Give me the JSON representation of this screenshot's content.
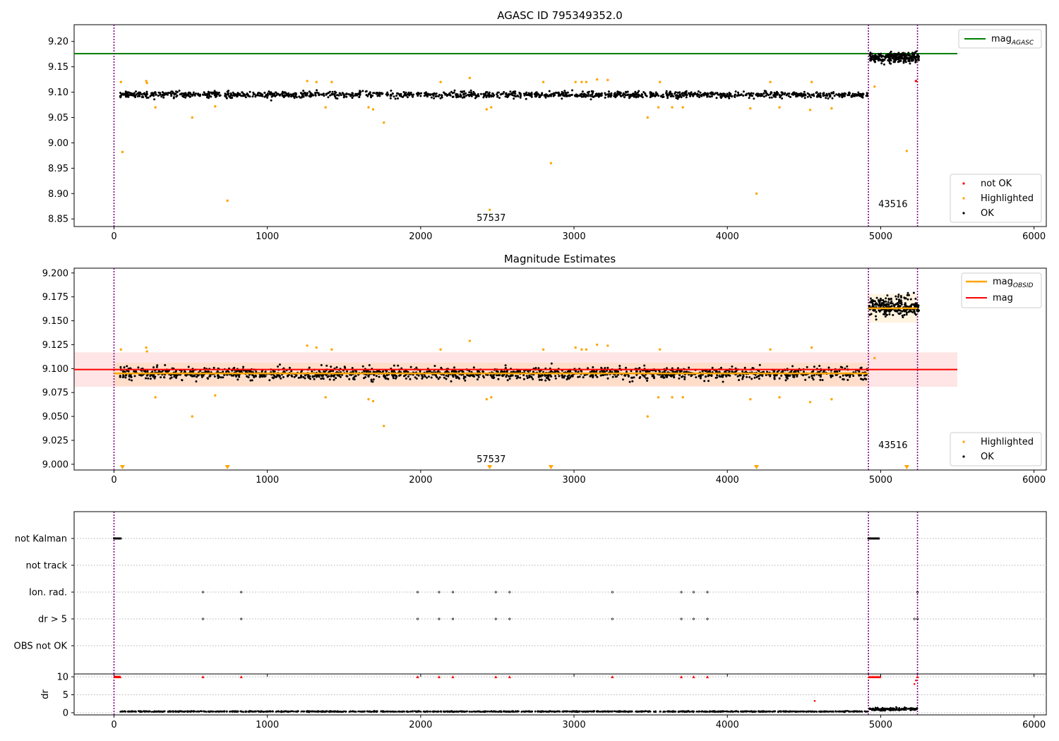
{
  "chart_data": [
    {
      "type": "scatter",
      "title": "AGASC ID 795349352.0",
      "xlabel": "",
      "ylabel": "",
      "xlim": [
        -260,
        6080
      ],
      "ylim": [
        8.835,
        9.233
      ],
      "xticks": [
        0,
        1000,
        2000,
        3000,
        4000,
        5000,
        6000
      ],
      "yticks": [
        8.85,
        8.9,
        8.95,
        9.0,
        9.05,
        9.1,
        9.15,
        9.2
      ],
      "ytick_format": 2,
      "grid": false,
      "obs_boundaries": [
        0,
        4920,
        5240
      ],
      "obs_labels": [
        {
          "text": "57537",
          "x": 2460,
          "y": 8.846
        },
        {
          "text": "43516",
          "x": 5080,
          "y": 8.873
        }
      ],
      "reference_line": {
        "name": "mag_AGASC",
        "y": 9.176,
        "x": [
          -260,
          5500
        ],
        "color": "#008000"
      },
      "legend_lines": [
        {
          "main": "mag",
          "sub": "AGASC",
          "color": "#008000"
        }
      ],
      "legend_markers": [
        {
          "label": "not OK",
          "color": "#ff0000"
        },
        {
          "label": "Highlighted",
          "color": "#ffa500"
        },
        {
          "label": "OK",
          "color": "#000000"
        }
      ],
      "legend_lines_position": "upper right",
      "legend_markers_position": "lower right",
      "series": [
        {
          "name": "OK",
          "color": "#000000",
          "segments": [
            {
              "x": [
                40,
                4920
              ],
              "y": 9.095,
              "noise": 0.008,
              "n": 1400
            },
            {
              "x": [
                4925,
                5250
              ],
              "y": 9.168,
              "noise": 0.012,
              "n": 260
            }
          ]
        },
        {
          "name": "Highlighted",
          "color": "#ffa500",
          "points": [
            [
              45,
              9.12
            ],
            [
              55,
              8.982
            ],
            [
              210,
              9.122
            ],
            [
              215,
              9.118
            ],
            [
              270,
              9.07
            ],
            [
              510,
              9.05
            ],
            [
              660,
              9.072
            ],
            [
              740,
              8.886
            ],
            [
              1260,
              9.122
            ],
            [
              1320,
              9.12
            ],
            [
              1380,
              9.07
            ],
            [
              1420,
              9.12
            ],
            [
              1660,
              9.07
            ],
            [
              1690,
              9.066
            ],
            [
              1760,
              9.04
            ],
            [
              2130,
              9.12
            ],
            [
              2320,
              9.128
            ],
            [
              2430,
              9.066
            ],
            [
              2450,
              8.868
            ],
            [
              2460,
              9.07
            ],
            [
              2800,
              9.12
            ],
            [
              2850,
              8.96
            ],
            [
              3010,
              9.12
            ],
            [
              3050,
              9.12
            ],
            [
              3080,
              9.12
            ],
            [
              3150,
              9.125
            ],
            [
              3220,
              9.124
            ],
            [
              3480,
              9.05
            ],
            [
              3550,
              9.07
            ],
            [
              3560,
              9.12
            ],
            [
              3640,
              9.07
            ],
            [
              3710,
              9.07
            ],
            [
              4150,
              9.068
            ],
            [
              4190,
              8.9
            ],
            [
              4280,
              9.12
            ],
            [
              4340,
              9.07
            ],
            [
              4540,
              9.065
            ],
            [
              4550,
              9.12
            ],
            [
              4680,
              9.068
            ],
            [
              4960,
              9.111
            ],
            [
              5170,
              8.984
            ]
          ]
        },
        {
          "name": "not OK",
          "color": "#ff0000",
          "points": [
            [
              5230,
              9.122
            ]
          ]
        }
      ]
    },
    {
      "type": "scatter",
      "title": "Magnitude Estimates",
      "xlabel": "",
      "ylabel": "",
      "xlim": [
        -260,
        6080
      ],
      "ylim": [
        8.994,
        9.205
      ],
      "xticks": [
        0,
        1000,
        2000,
        3000,
        4000,
        5000,
        6000
      ],
      "yticks": [
        9.0,
        9.025,
        9.05,
        9.075,
        9.1,
        9.125,
        9.15,
        9.175,
        9.2
      ],
      "ytick_format": 3,
      "grid": false,
      "obs_boundaries": [
        0,
        4920,
        5240
      ],
      "obs_labels": [
        {
          "text": "57537",
          "x": 2460,
          "y": 9.002
        },
        {
          "text": "43516",
          "x": 5080,
          "y": 9.017
        }
      ],
      "mag": {
        "name": "mag",
        "y": 9.099,
        "band": [
          9.081,
          9.117
        ],
        "x": [
          -260,
          5500
        ],
        "color": "#ff0000"
      },
      "mag_obsid": [
        {
          "x": [
            0,
            4920
          ],
          "y": 9.095,
          "band": [
            9.082,
            9.106
          ]
        },
        {
          "x": [
            4920,
            5240
          ],
          "y": 9.163,
          "band": [
            9.148,
            9.178
          ]
        }
      ],
      "legend_lines": [
        {
          "main": "mag",
          "sub": "OBSID",
          "color": "#ffa500"
        },
        {
          "main": "mag",
          "sub": "",
          "color": "#ff0000"
        }
      ],
      "legend_markers": [
        {
          "label": "Highlighted",
          "color": "#ffa500"
        },
        {
          "label": "OK",
          "color": "#000000"
        }
      ],
      "legend_lines_position": "upper right",
      "legend_markers_position": "lower right",
      "clipped_markers_x": [
        55,
        740,
        2450,
        2850,
        4190,
        5170
      ],
      "series": [
        {
          "name": "OK",
          "color": "#000000",
          "segments": [
            {
              "x": [
                40,
                4920
              ],
              "y": 9.095,
              "noise": 0.008,
              "n": 1600
            },
            {
              "x": [
                4925,
                5250
              ],
              "y": 9.165,
              "noise": 0.013,
              "n": 260
            }
          ]
        },
        {
          "name": "Highlighted",
          "color": "#ffa500",
          "points": [
            [
              45,
              9.12
            ],
            [
              210,
              9.122
            ],
            [
              215,
              9.118
            ],
            [
              270,
              9.07
            ],
            [
              510,
              9.05
            ],
            [
              660,
              9.072
            ],
            [
              1260,
              9.124
            ],
            [
              1320,
              9.122
            ],
            [
              1380,
              9.07
            ],
            [
              1420,
              9.12
            ],
            [
              1660,
              9.068
            ],
            [
              1690,
              9.066
            ],
            [
              1760,
              9.04
            ],
            [
              2130,
              9.12
            ],
            [
              2320,
              9.129
            ],
            [
              2430,
              9.068
            ],
            [
              2460,
              9.07
            ],
            [
              2800,
              9.12
            ],
            [
              3010,
              9.122
            ],
            [
              3050,
              9.12
            ],
            [
              3080,
              9.12
            ],
            [
              3150,
              9.125
            ],
            [
              3220,
              9.124
            ],
            [
              3480,
              9.05
            ],
            [
              3550,
              9.07
            ],
            [
              3560,
              9.12
            ],
            [
              3640,
              9.07
            ],
            [
              3710,
              9.07
            ],
            [
              4150,
              9.068
            ],
            [
              4280,
              9.12
            ],
            [
              4340,
              9.07
            ],
            [
              4540,
              9.065
            ],
            [
              4550,
              9.122
            ],
            [
              4680,
              9.068
            ],
            [
              4960,
              9.111
            ]
          ]
        }
      ]
    },
    {
      "type": "scatter",
      "title": "",
      "xlabel": "",
      "ylabel": "",
      "xlim": [
        -260,
        6080
      ],
      "categories": [
        "not Kalman",
        "not track",
        "Ion. rad.",
        "dr > 5",
        "OBS not OK"
      ],
      "grid": true,
      "obs_boundaries": [
        0,
        4920,
        5240
      ],
      "flags": [
        {
          "category": "not Kalman",
          "ranges": [
            [
              0,
              45
            ],
            [
              4920,
              4990
            ]
          ]
        },
        {
          "category": "not track",
          "x": []
        },
        {
          "category": "Ion. rad.",
          "x": [
            580,
            830,
            1980,
            2120,
            2210,
            2490,
            2580,
            3250,
            3700,
            3780,
            3870,
            5240
          ]
        },
        {
          "category": "dr > 5",
          "x": [
            580,
            830,
            1980,
            2120,
            2210,
            2490,
            2580,
            3250,
            3700,
            3780,
            3870,
            5220,
            5240
          ]
        },
        {
          "category": "OBS not OK",
          "x": []
        }
      ]
    },
    {
      "type": "scatter",
      "title": "",
      "xlabel": "",
      "ylabel": "dr",
      "xlim": [
        -260,
        6080
      ],
      "ylim": [
        -0.6,
        10.8
      ],
      "yticks": [
        0,
        5,
        10
      ],
      "grid": true,
      "obs_boundaries": [
        0,
        4920,
        5240
      ],
      "series": [
        {
          "name": "dr",
          "color": "#000000",
          "segments": [
            {
              "x": [
                40,
                4920
              ],
              "y": 0.35,
              "noise": 0.15,
              "n": 1300
            },
            {
              "x": [
                4925,
                5240
              ],
              "y": 1.0,
              "noise": 0.5,
              "n": 160
            }
          ]
        },
        {
          "name": "dr (clipped)",
          "color": "#ff0000",
          "clipped_x": [
            5,
            10,
            15,
            20,
            25,
            30,
            35,
            40,
            580,
            830,
            1980,
            2120,
            2210,
            2490,
            2580,
            3250,
            3700,
            3780,
            3870,
            4925,
            4935,
            4945,
            4955,
            4965,
            4975,
            4985,
            4995,
            5240
          ]
        },
        {
          "name": "dr (high)",
          "color": "#ff0000",
          "points": [
            [
              4570,
              3.3
            ],
            [
              5220,
              8.0
            ],
            [
              5230,
              9.0
            ]
          ]
        }
      ]
    }
  ]
}
